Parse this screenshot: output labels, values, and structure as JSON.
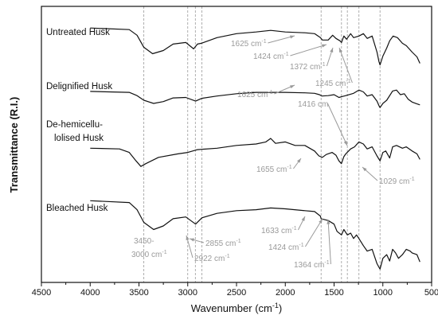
{
  "chart_data": {
    "type": "line",
    "xlabel": "Wavenumber (cm",
    "xlabel_sup": "-1",
    "xlabel_close": ")",
    "ylabel": "Transmittance (R.I.)",
    "xlim": [
      4500,
      500
    ],
    "x_reversed": true,
    "xticks": [
      4500,
      4000,
      3500,
      3000,
      2500,
      2000,
      1500,
      1000,
      500
    ],
    "y_tick_labels": false,
    "reference_lines": [
      3450,
      3000,
      2922,
      2855,
      1633,
      1424,
      1364,
      1245,
      1029
    ],
    "series": [
      {
        "name": "Untreated Husk",
        "points": [
          [
            4000,
            82
          ],
          [
            3600,
            80
          ],
          [
            3520,
            73
          ],
          [
            3450,
            58
          ],
          [
            3360,
            50
          ],
          [
            3250,
            54
          ],
          [
            3150,
            62
          ],
          [
            3020,
            64
          ],
          [
            2940,
            56
          ],
          [
            2900,
            62
          ],
          [
            2860,
            63
          ],
          [
            2700,
            70
          ],
          [
            2500,
            75
          ],
          [
            2300,
            77
          ],
          [
            2150,
            79
          ],
          [
            2000,
            77
          ],
          [
            1800,
            76
          ],
          [
            1700,
            75
          ],
          [
            1640,
            70
          ],
          [
            1620,
            67
          ],
          [
            1560,
            67
          ],
          [
            1515,
            73
          ],
          [
            1480,
            69
          ],
          [
            1440,
            66
          ],
          [
            1424,
            64
          ],
          [
            1400,
            72
          ],
          [
            1372,
            68
          ],
          [
            1330,
            75
          ],
          [
            1300,
            70
          ],
          [
            1245,
            72
          ],
          [
            1200,
            75
          ],
          [
            1160,
            69
          ],
          [
            1110,
            72
          ],
          [
            1060,
            52
          ],
          [
            1040,
            40
          ],
          [
            1029,
            36
          ],
          [
            1000,
            47
          ],
          [
            960,
            57
          ],
          [
            930,
            66
          ],
          [
            895,
            72
          ],
          [
            850,
            70
          ],
          [
            800,
            63
          ],
          [
            760,
            60
          ],
          [
            700,
            52
          ],
          [
            650,
            46
          ],
          [
            620,
            38
          ]
        ]
      },
      {
        "name": "Delignified Husk",
        "points": [
          [
            4000,
            57
          ],
          [
            3600,
            55
          ],
          [
            3520,
            48
          ],
          [
            3450,
            38
          ],
          [
            3350,
            31
          ],
          [
            3250,
            35
          ],
          [
            3150,
            43
          ],
          [
            3020,
            44
          ],
          [
            2920,
            36
          ],
          [
            2855,
            42
          ],
          [
            2700,
            47
          ],
          [
            2500,
            52
          ],
          [
            2300,
            55
          ],
          [
            2000,
            55
          ],
          [
            1800,
            54
          ],
          [
            1700,
            53
          ],
          [
            1650,
            50
          ],
          [
            1625,
            47
          ],
          [
            1560,
            48
          ],
          [
            1500,
            50
          ],
          [
            1450,
            44
          ],
          [
            1416,
            46
          ],
          [
            1380,
            48
          ],
          [
            1300,
            53
          ],
          [
            1245,
            60
          ],
          [
            1200,
            56
          ],
          [
            1160,
            47
          ],
          [
            1110,
            50
          ],
          [
            1060,
            36
          ],
          [
            1040,
            26
          ],
          [
            1029,
            22
          ],
          [
            1000,
            31
          ],
          [
            960,
            38
          ],
          [
            900,
            58
          ],
          [
            860,
            60
          ],
          [
            820,
            50
          ],
          [
            780,
            52
          ],
          [
            740,
            40
          ],
          [
            700,
            34
          ],
          [
            650,
            30
          ],
          [
            620,
            28
          ]
        ]
      },
      {
        "name": "De-hemicellu-lolised Husk",
        "points": [
          [
            4000,
            36
          ],
          [
            3700,
            35
          ],
          [
            3600,
            30
          ],
          [
            3530,
            18
          ],
          [
            3480,
            10
          ],
          [
            3430,
            14
          ],
          [
            3300,
            23
          ],
          [
            3100,
            28
          ],
          [
            3000,
            30
          ],
          [
            2900,
            34
          ],
          [
            2700,
            36
          ],
          [
            2500,
            40
          ],
          [
            2300,
            42
          ],
          [
            2200,
            45
          ],
          [
            2150,
            50
          ],
          [
            2100,
            43
          ],
          [
            2000,
            45
          ],
          [
            1900,
            40
          ],
          [
            1800,
            40
          ],
          [
            1700,
            32
          ],
          [
            1655,
            25
          ],
          [
            1620,
            23
          ],
          [
            1580,
            27
          ],
          [
            1520,
            30
          ],
          [
            1480,
            26
          ],
          [
            1450,
            18
          ],
          [
            1425,
            14
          ],
          [
            1400,
            24
          ],
          [
            1380,
            28
          ],
          [
            1330,
            35
          ],
          [
            1290,
            38
          ],
          [
            1245,
            45
          ],
          [
            1200,
            42
          ],
          [
            1160,
            35
          ],
          [
            1110,
            38
          ],
          [
            1060,
            25
          ],
          [
            1029,
            18
          ],
          [
            1000,
            30
          ],
          [
            970,
            32
          ],
          [
            930,
            22
          ],
          [
            900,
            38
          ],
          [
            860,
            40
          ],
          [
            800,
            36
          ],
          [
            760,
            38
          ],
          [
            700,
            32
          ],
          [
            650,
            28
          ],
          [
            620,
            20
          ]
        ]
      },
      {
        "name": "Bleached Husk",
        "points": [
          [
            4000,
            82
          ],
          [
            3600,
            80
          ],
          [
            3520,
            72
          ],
          [
            3450,
            58
          ],
          [
            3350,
            50
          ],
          [
            3250,
            54
          ],
          [
            3150,
            62
          ],
          [
            3020,
            64
          ],
          [
            2920,
            56
          ],
          [
            2855,
            63
          ],
          [
            2700,
            68
          ],
          [
            2500,
            71
          ],
          [
            2300,
            72
          ],
          [
            2150,
            74
          ],
          [
            2000,
            73
          ],
          [
            1800,
            71
          ],
          [
            1700,
            70
          ],
          [
            1640,
            65
          ],
          [
            1633,
            62
          ],
          [
            1560,
            60
          ],
          [
            1500,
            56
          ],
          [
            1470,
            48
          ],
          [
            1424,
            44
          ],
          [
            1400,
            50
          ],
          [
            1364,
            44
          ],
          [
            1330,
            46
          ],
          [
            1300,
            40
          ],
          [
            1270,
            44
          ],
          [
            1245,
            40
          ],
          [
            1200,
            32
          ],
          [
            1160,
            26
          ],
          [
            1110,
            28
          ],
          [
            1060,
            12
          ],
          [
            1040,
            8
          ],
          [
            1029,
            6
          ],
          [
            1000,
            18
          ],
          [
            960,
            22
          ],
          [
            930,
            15
          ],
          [
            900,
            28
          ],
          [
            870,
            24
          ],
          [
            840,
            18
          ],
          [
            800,
            22
          ],
          [
            760,
            28
          ],
          [
            720,
            26
          ],
          [
            700,
            24
          ],
          [
            650,
            22
          ],
          [
            620,
            14
          ]
        ]
      }
    ],
    "annotations": [
      {
        "id": "u1625",
        "text": "1625 cm",
        "sup": "-1",
        "target_x": 1625,
        "target_series": 0
      },
      {
        "id": "u1424",
        "text": "1424 cm",
        "sup": "-1",
        "target_x": 1424,
        "target_series": 0
      },
      {
        "id": "u1372",
        "text": "1372 cm",
        "sup": "-1",
        "target_x": 1372,
        "target_series": 0
      },
      {
        "id": "u1245",
        "text": "1245 cm",
        "sup": "-1",
        "target_x": 1245,
        "target_series": 0
      },
      {
        "id": "d1625",
        "text": "1625 cm",
        "sup": "-1",
        "target_x": 1625,
        "target_series": 1
      },
      {
        "id": "d1416",
        "text": "1416 cm",
        "sup": "",
        "target_x": 1416,
        "target_series": 2
      },
      {
        "id": "h1655",
        "text": "1655 cm",
        "sup": "-1",
        "target_x": 1655,
        "target_series": 2
      },
      {
        "id": "h1029",
        "text": "1029 cm",
        "sup": "-1",
        "target_x": 1029,
        "target_series": 2
      },
      {
        "id": "b3450a",
        "text": "3450-",
        "sup": "",
        "target_x": null,
        "target_series": null
      },
      {
        "id": "b3450b",
        "text": "3000 cm",
        "sup": "-1",
        "target_x": null,
        "target_series": null
      },
      {
        "id": "b2855",
        "text": "2855 cm",
        "sup": "-1",
        "target_x": 2855,
        "target_series": 3
      },
      {
        "id": "b2922",
        "text": "2922 cm",
        "sup": "-1",
        "target_x": 2922,
        "target_series": 3
      },
      {
        "id": "b1633",
        "text": "1633 cm",
        "sup": "-1",
        "target_x": 1633,
        "target_series": 3
      },
      {
        "id": "b1424",
        "text": "1424 cm",
        "sup": "-1",
        "target_x": 1424,
        "target_series": 3
      },
      {
        "id": "b1364",
        "text": "1364 cm",
        "sup": "-1",
        "target_x": 1364,
        "target_series": 3
      }
    ]
  }
}
